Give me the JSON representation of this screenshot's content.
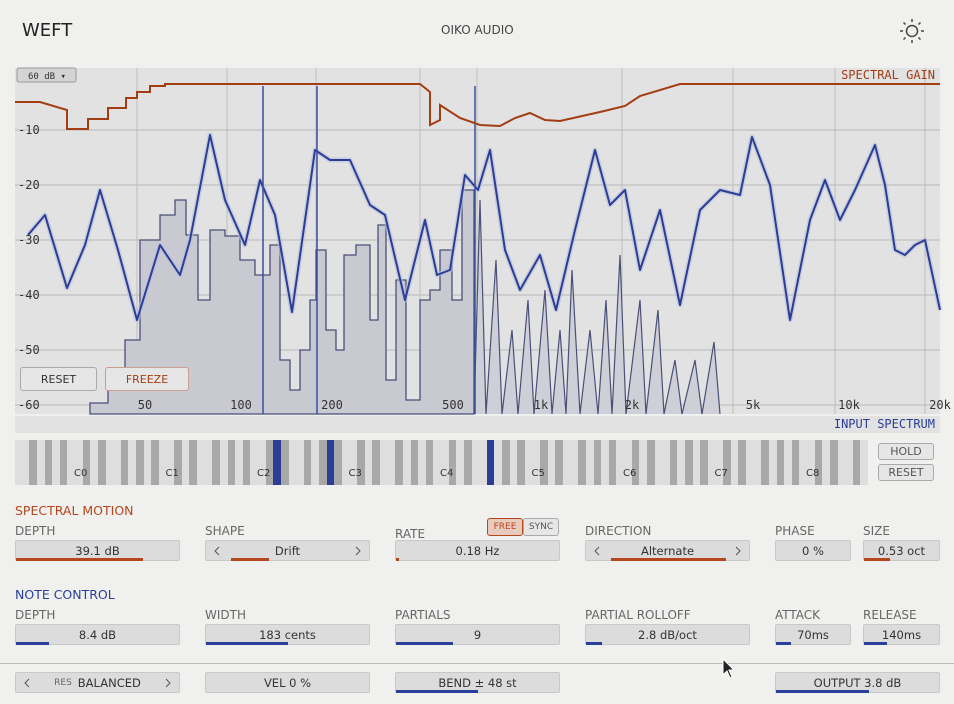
{
  "header": {
    "title": "WEFT",
    "brand": "OIKO AUDIO"
  },
  "display": {
    "range": "60 dB ▾",
    "spectral_gain_label": "SPECTRAL GAIN",
    "input_spectrum_label": "INPUT SPECTRUM",
    "db_labels": [
      "-10",
      "-20",
      "-30",
      "-40",
      "-50",
      "-60"
    ],
    "freq_labels": [
      "50",
      "100",
      "200",
      "500",
      "1k",
      "2k",
      "5k",
      "10k",
      "20k"
    ],
    "buttons": [
      "RESET",
      "FREEZE"
    ]
  },
  "keyboard": {
    "octaves": [
      "C0",
      "C1",
      "C2",
      "C3",
      "C4",
      "C5",
      "C6",
      "C7",
      "C8"
    ],
    "buttons": [
      "HOLD",
      "RESET"
    ]
  },
  "spectral_motion": {
    "title": "SPECTRAL MOTION",
    "rate_modes": [
      "FREE",
      "SYNC"
    ],
    "controls": [
      {
        "label": "DEPTH",
        "value": "39.1 dB"
      },
      {
        "label": "SHAPE",
        "value": "Drift"
      },
      {
        "label": "RATE",
        "value": "0.18 Hz"
      },
      {
        "label": "DIRECTION",
        "value": "Alternate"
      },
      {
        "label": "PHASE",
        "value": "0 %"
      },
      {
        "label": "SIZE",
        "value": "0.53 oct"
      }
    ]
  },
  "note_control": {
    "title": "NOTE CONTROL",
    "controls": [
      {
        "label": "DEPTH",
        "value": "8.4 dB"
      },
      {
        "label": "WIDTH",
        "value": "183 cents"
      },
      {
        "label": "PARTIALS",
        "value": "9"
      },
      {
        "label": "PARTIAL ROLLOFF",
        "value": "2.8 dB/oct"
      },
      {
        "label": "ATTACK",
        "value": "70ms"
      },
      {
        "label": "RELEASE",
        "value": "140ms"
      }
    ]
  },
  "footer": {
    "res_label": "RES",
    "res_value": "BALANCED",
    "vel": "VEL 0 %",
    "bend": "BEND ± 48 st",
    "output": "OUTPUT 3.8 dB"
  }
}
